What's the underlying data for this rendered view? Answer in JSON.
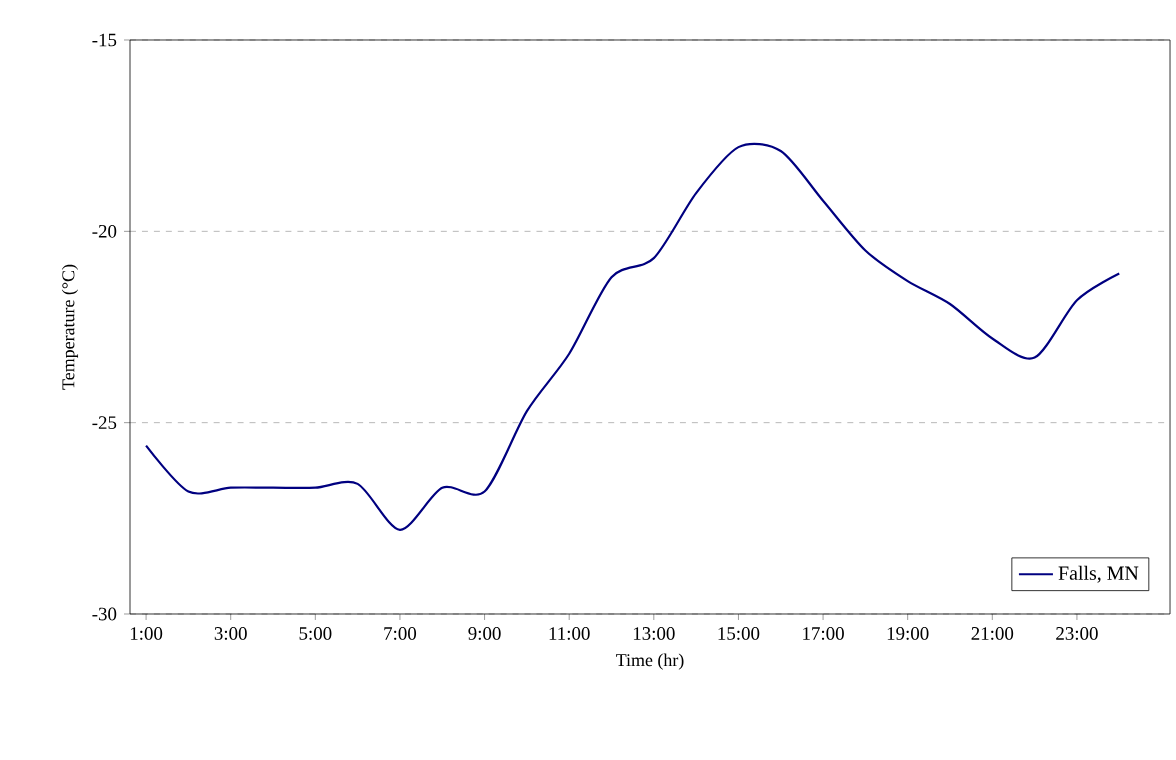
{
  "chart_data": {
    "type": "line",
    "xlabel": "Time (hr)",
    "ylabel": "Temperature (°C)",
    "x": [
      1,
      2,
      3,
      4,
      5,
      6,
      7,
      8,
      9,
      10,
      11,
      12,
      13,
      14,
      15,
      16,
      17,
      18,
      19,
      20,
      21,
      22,
      23,
      24
    ],
    "series": [
      {
        "name": "Falls, MN",
        "color": "#000080",
        "values": [
          -25.6,
          -26.8,
          -26.7,
          -26.7,
          -26.7,
          -26.6,
          -27.8,
          -26.7,
          -26.8,
          -24.7,
          -23.2,
          -21.2,
          -20.7,
          -19.0,
          -17.8,
          -17.9,
          -19.2,
          -20.5,
          -21.3,
          -21.9,
          -22.8,
          -23.3,
          -21.8,
          -21.1
        ]
      }
    ],
    "xlim": [
      0.62,
      25.2
    ],
    "xticks": [
      {
        "value": 1,
        "label": "1:00"
      },
      {
        "value": 3,
        "label": "3:00"
      },
      {
        "value": 5,
        "label": "5:00"
      },
      {
        "value": 7,
        "label": "7:00"
      },
      {
        "value": 9,
        "label": "9:00"
      },
      {
        "value": 11,
        "label": "11:00"
      },
      {
        "value": 13,
        "label": "13:00"
      },
      {
        "value": 15,
        "label": "15:00"
      },
      {
        "value": 17,
        "label": "17:00"
      },
      {
        "value": 19,
        "label": "19:00"
      },
      {
        "value": 21,
        "label": "21:00"
      },
      {
        "value": 23,
        "label": "23:00"
      }
    ],
    "ylim": [
      -30,
      -15
    ],
    "yticks": [
      -30,
      -25,
      -20,
      -15
    ],
    "grid": "y",
    "legend": "bottom right",
    "marker": "none",
    "line_style": "solid"
  }
}
